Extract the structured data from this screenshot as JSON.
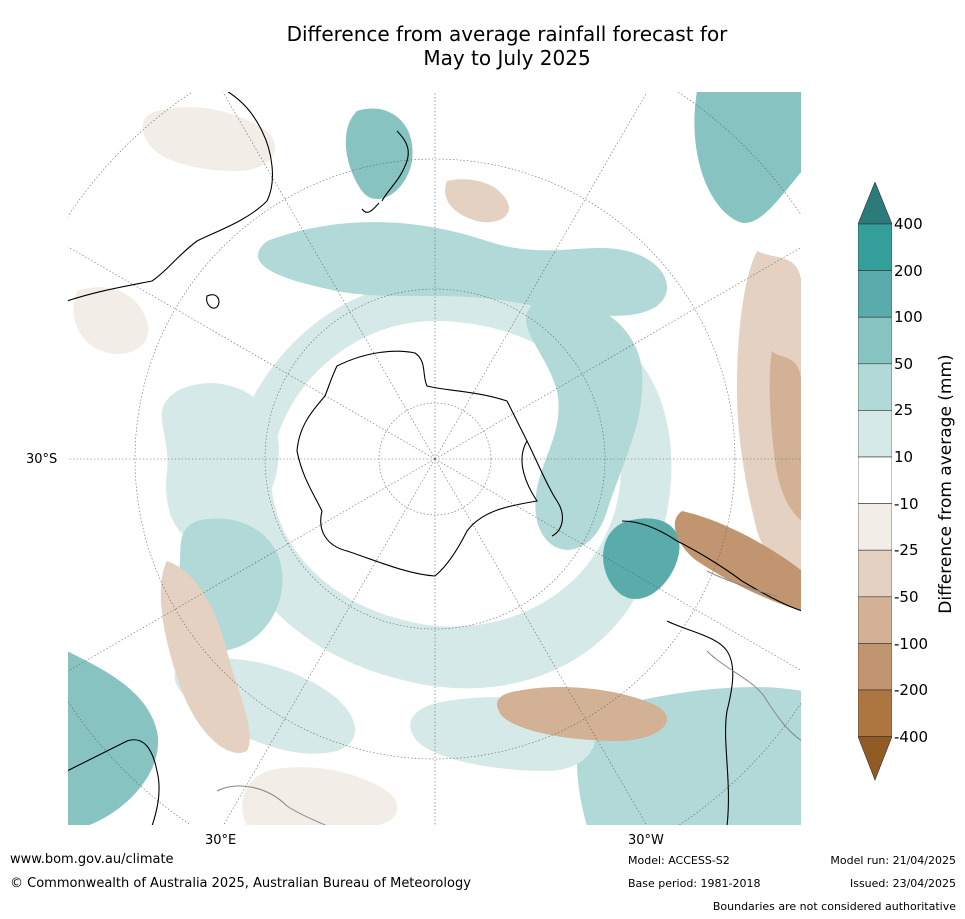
{
  "title_line1": "Difference from average rainfall forecast for",
  "title_line2": "May to July 2025",
  "map": {
    "lat_label": "30°S",
    "lon_labels": [
      "30°E",
      "30°W"
    ]
  },
  "colorbar": {
    "label": "Difference from average (mm)",
    "ticks": [
      "400",
      "200",
      "100",
      "50",
      "25",
      "10",
      "-10",
      "-25",
      "-50",
      "-100",
      "-200",
      "-400"
    ],
    "colors": {
      "gt400": "#2a7b79",
      "200_400": "#339e9a",
      "100_200": "#5aacab",
      "50_100": "#86c3c1",
      "25_50": "#b0d9d7",
      "10_25": "#d5eae8",
      "neutral": "#ffffff",
      "m25_m10": "#f2ede7",
      "m50_m25": "#e4d1c1",
      "m100_m50": "#d2b195",
      "m200_m100": "#c19570",
      "m400_m200": "#ad7640",
      "lt_m400": "#935b24"
    }
  },
  "footer": {
    "website": "www.bom.gov.au/climate",
    "copyright": "© Commonwealth of Australia 2025, Australian Bureau of Meteorology",
    "model": "Model: ACCESS-S2",
    "base_period": "Base period: 1981-2018",
    "model_run": "Model run: 21/04/2025",
    "issued": "Issued: 23/04/2025",
    "disclaimer": "Boundaries are not considered authoritative"
  }
}
